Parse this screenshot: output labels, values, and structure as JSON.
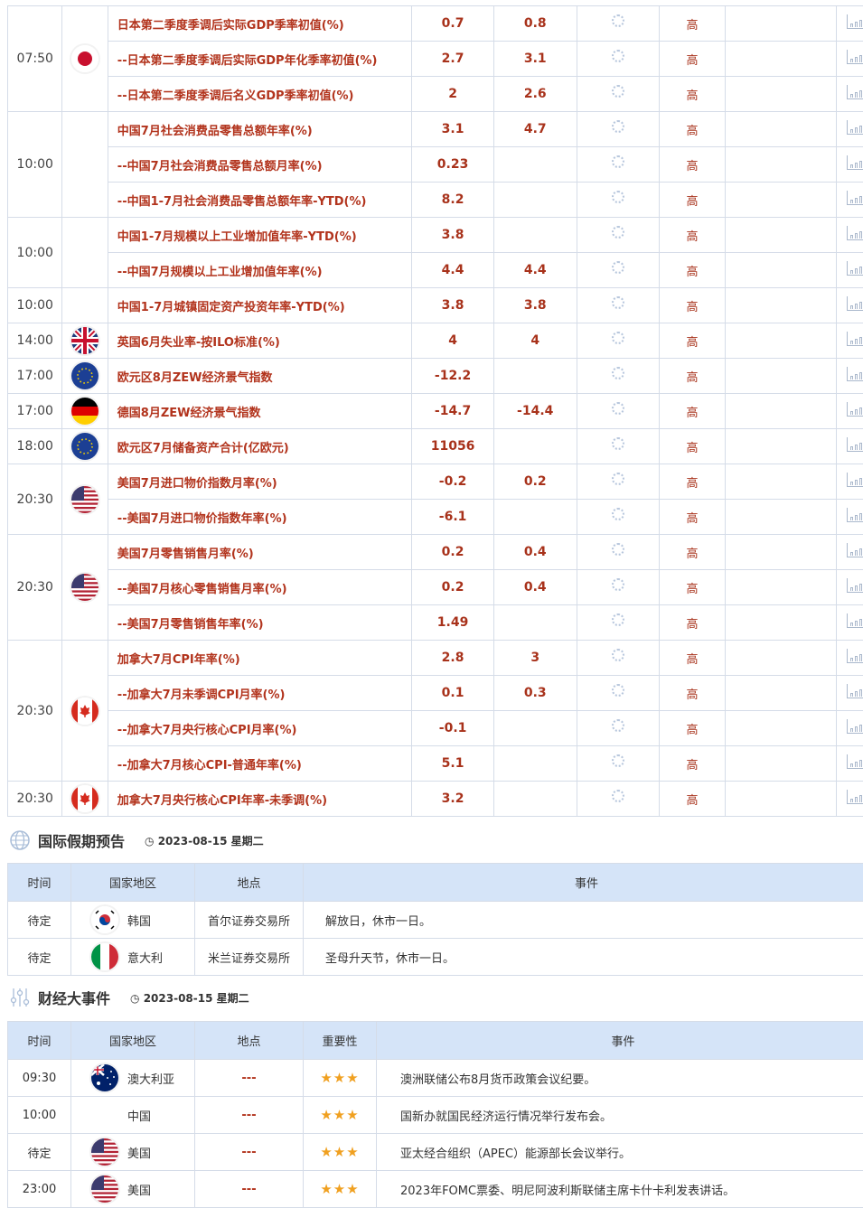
{
  "calendar": {
    "groups": [
      {
        "time": "07:50",
        "flag": "japan",
        "rows": [
          {
            "name": "日本第二季度季调后实际GDP季率初值(%)",
            "actual": "0.7",
            "forecast": "0.8",
            "importance": "高"
          },
          {
            "name": "--日本第二季度季调后实际GDP年化季率初值(%)",
            "actual": "2.7",
            "forecast": "3.1",
            "importance": "高"
          },
          {
            "name": "--日本第二季度季调后名义GDP季率初值(%)",
            "actual": "2",
            "forecast": "2.6",
            "importance": "高"
          }
        ]
      },
      {
        "time": "10:00",
        "flag": "",
        "rows": [
          {
            "name": "中国7月社会消费品零售总额年率(%)",
            "actual": "3.1",
            "forecast": "4.7",
            "importance": "高"
          },
          {
            "name": "--中国7月社会消费品零售总额月率(%)",
            "actual": "0.23",
            "forecast": "",
            "importance": "高"
          },
          {
            "name": "--中国1-7月社会消费品零售总额年率-YTD(%)",
            "actual": "8.2",
            "forecast": "",
            "importance": "高"
          }
        ]
      },
      {
        "time": "10:00",
        "flag": "",
        "rows": [
          {
            "name": "中国1-7月规模以上工业增加值年率-YTD(%)",
            "actual": "3.8",
            "forecast": "",
            "importance": "高"
          },
          {
            "name": "--中国7月规模以上工业增加值年率(%)",
            "actual": "4.4",
            "forecast": "4.4",
            "importance": "高"
          }
        ]
      },
      {
        "time": "10:00",
        "flag": "",
        "rows": [
          {
            "name": "中国1-7月城镇固定资产投资年率-YTD(%)",
            "actual": "3.8",
            "forecast": "3.8",
            "importance": "高"
          }
        ]
      },
      {
        "time": "14:00",
        "flag": "uk",
        "rows": [
          {
            "name": "英国6月失业率-按ILO标准(%)",
            "actual": "4",
            "forecast": "4",
            "importance": "高"
          }
        ]
      },
      {
        "time": "17:00",
        "flag": "eu",
        "rows": [
          {
            "name": "欧元区8月ZEW经济景气指数",
            "actual": "-12.2",
            "forecast": "",
            "importance": "高"
          }
        ]
      },
      {
        "time": "17:00",
        "flag": "germany",
        "rows": [
          {
            "name": "德国8月ZEW经济景气指数",
            "actual": "-14.7",
            "forecast": "-14.4",
            "importance": "高"
          }
        ]
      },
      {
        "time": "18:00",
        "flag": "eu",
        "rows": [
          {
            "name": "欧元区7月储备资产合计(亿欧元)",
            "actual": "11056",
            "forecast": "",
            "importance": "高"
          }
        ]
      },
      {
        "time": "20:30",
        "flag": "us",
        "rows": [
          {
            "name": "美国7月进口物价指数月率(%)",
            "actual": "-0.2",
            "forecast": "0.2",
            "importance": "高"
          },
          {
            "name": "--美国7月进口物价指数年率(%)",
            "actual": "-6.1",
            "forecast": "",
            "importance": "高"
          }
        ]
      },
      {
        "time": "20:30",
        "flag": "us",
        "rows": [
          {
            "name": "美国7月零售销售月率(%)",
            "actual": "0.2",
            "forecast": "0.4",
            "importance": "高"
          },
          {
            "name": "--美国7月核心零售销售月率(%)",
            "actual": "0.2",
            "forecast": "0.4",
            "importance": "高"
          },
          {
            "name": "--美国7月零售销售年率(%)",
            "actual": "1.49",
            "forecast": "",
            "importance": "高"
          }
        ]
      },
      {
        "time": "20:30",
        "flag": "canada",
        "rows": [
          {
            "name": "加拿大7月CPI年率(%)",
            "actual": "2.8",
            "forecast": "3",
            "importance": "高"
          },
          {
            "name": "--加拿大7月未季调CPI月率(%)",
            "actual": "0.1",
            "forecast": "0.3",
            "importance": "高"
          },
          {
            "name": "--加拿大7月央行核心CPI月率(%)",
            "actual": "-0.1",
            "forecast": "",
            "importance": "高"
          },
          {
            "name": "--加拿大7月核心CPI-普通年率(%)",
            "actual": "5.1",
            "forecast": "",
            "importance": "高"
          }
        ]
      },
      {
        "time": "20:30",
        "flag": "canada",
        "rows": [
          {
            "name": "加拿大7月央行核心CPI年率-未季调(%)",
            "actual": "3.2",
            "forecast": "",
            "importance": "高"
          }
        ]
      }
    ]
  },
  "holidays": {
    "title": "国际假期预告",
    "date": "2023-08-15 星期二",
    "headers": [
      "时间",
      "国家地区",
      "地点",
      "事件"
    ],
    "rows": [
      {
        "time": "待定",
        "flag": "korea",
        "country": "韩国",
        "place": "首尔证券交易所",
        "event": "解放日，休市一日。"
      },
      {
        "time": "待定",
        "flag": "italy",
        "country": "意大利",
        "place": "米兰证券交易所",
        "event": "圣母升天节，休市一日。"
      }
    ]
  },
  "events": {
    "title": "财经大事件",
    "date": "2023-08-15 星期二",
    "headers": [
      "时间",
      "国家地区",
      "地点",
      "重要性",
      "事件"
    ],
    "rows": [
      {
        "time": "09:30",
        "flag": "australia",
        "country": "澳大利亚",
        "place": "---",
        "stars": 3,
        "event": "澳洲联储公布8月货币政策会议纪要。"
      },
      {
        "time": "10:00",
        "flag": "",
        "country": "中国",
        "place": "---",
        "stars": 3,
        "event": "国新办就国民经济运行情况举行发布会。"
      },
      {
        "time": "待定",
        "flag": "us",
        "country": "美国",
        "place": "---",
        "stars": 3,
        "event": "亚太经合组织（APEC）能源部长会议举行。"
      },
      {
        "time": "23:00",
        "flag": "us",
        "country": "美国",
        "place": "---",
        "stars": 3,
        "event": "2023年FOMC票委、明尼阿波利斯联储主席卡什卡利发表讲话。"
      }
    ]
  },
  "colors": {
    "accent_text": "#b2331c",
    "header_bg": "#d5e4f8",
    "star": "#f0a020"
  }
}
